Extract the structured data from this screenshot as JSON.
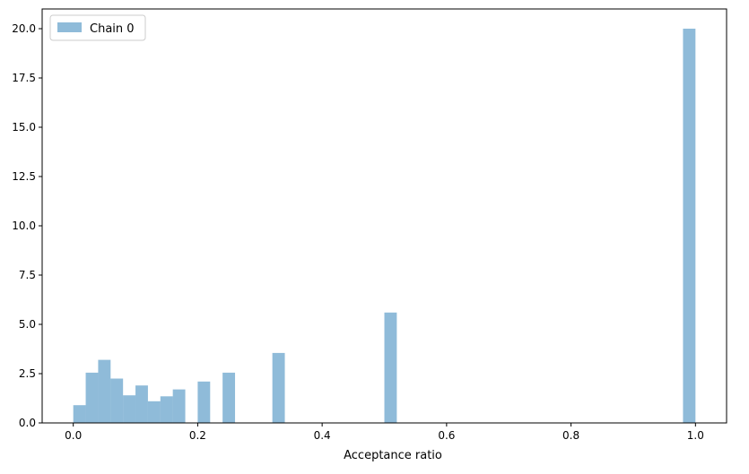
{
  "chart_data": {
    "type": "bar",
    "subtype": "histogram",
    "title": "",
    "xlabel": "Acceptance ratio",
    "ylabel": "",
    "xlim": [
      -0.05,
      1.05
    ],
    "ylim": [
      0,
      21
    ],
    "xticks": [
      0.0,
      0.2,
      0.4,
      0.6,
      0.8,
      1.0
    ],
    "xtick_labels": [
      "0.0",
      "0.2",
      "0.4",
      "0.6",
      "0.8",
      "1.0"
    ],
    "yticks": [
      0.0,
      2.5,
      5.0,
      7.5,
      10.0,
      12.5,
      15.0,
      17.5,
      20.0
    ],
    "ytick_labels": [
      "0.0",
      "2.5",
      "5.0",
      "7.5",
      "10.0",
      "12.5",
      "15.0",
      "17.5",
      "20.0"
    ],
    "grid": false,
    "legend_position": "top-left",
    "bin_width": 0.02,
    "series": [
      {
        "name": "Chain 0",
        "color": "#1f77b4",
        "opacity": 0.5,
        "bins": [
          {
            "x0": 0.0,
            "x1": 0.02,
            "value": 0.9
          },
          {
            "x0": 0.02,
            "x1": 0.04,
            "value": 2.55
          },
          {
            "x0": 0.04,
            "x1": 0.06,
            "value": 3.2
          },
          {
            "x0": 0.06,
            "x1": 0.08,
            "value": 2.25
          },
          {
            "x0": 0.08,
            "x1": 0.1,
            "value": 1.4
          },
          {
            "x0": 0.1,
            "x1": 0.12,
            "value": 1.9
          },
          {
            "x0": 0.12,
            "x1": 0.14,
            "value": 1.1
          },
          {
            "x0": 0.14,
            "x1": 0.16,
            "value": 1.35
          },
          {
            "x0": 0.16,
            "x1": 0.18,
            "value": 1.7
          },
          {
            "x0": 0.2,
            "x1": 0.22,
            "value": 2.1
          },
          {
            "x0": 0.24,
            "x1": 0.26,
            "value": 2.55
          },
          {
            "x0": 0.32,
            "x1": 0.34,
            "value": 3.55
          },
          {
            "x0": 0.5,
            "x1": 0.52,
            "value": 5.6
          },
          {
            "x0": 0.98,
            "x1": 1.0,
            "value": 20.0
          }
        ]
      }
    ]
  }
}
